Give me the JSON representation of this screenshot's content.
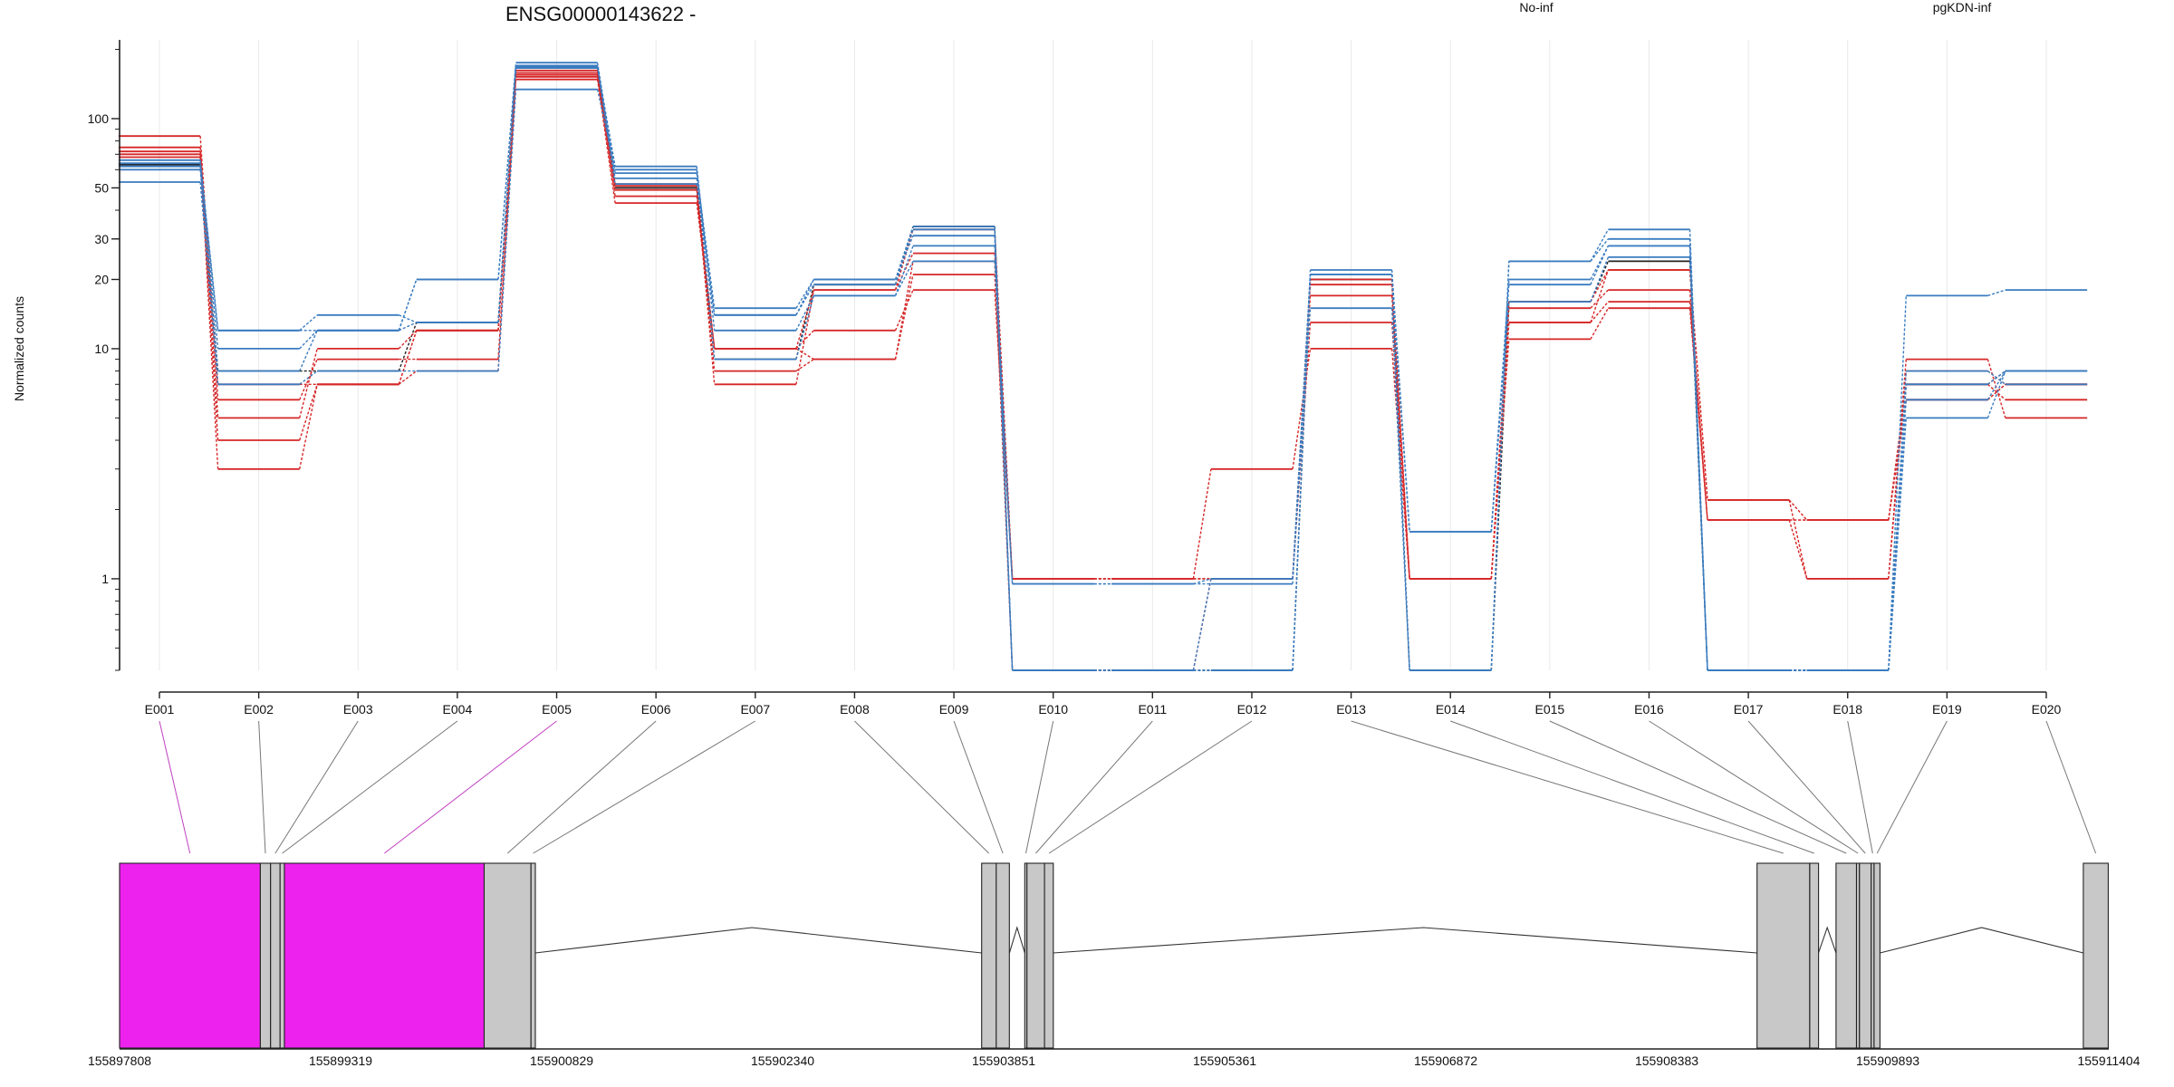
{
  "chart_data": {
    "type": "line",
    "title": "ENSG00000143622 -",
    "ylabel": "Normalized counts",
    "y_scale": "log",
    "ylim": [
      0.4,
      220
    ],
    "y_ticks": [
      1,
      10,
      20,
      30,
      50,
      100
    ],
    "legend": {
      "placement": "top",
      "entries": [
        "No-inf",
        "pgKDN-inf"
      ]
    },
    "groups": [
      {
        "label": "No-inf",
        "color": "#d62728"
      },
      {
        "label": "pgKDN-inf",
        "color": "#3a7cc0"
      }
    ],
    "colors": {
      "no_inf": "#d62728",
      "pgkdn_inf": "#3a7cc0",
      "dark": "#222222",
      "highlight_exon": "#ee22ee",
      "exon": "#c8c8c8"
    },
    "categories": [
      "E001",
      "E002",
      "E003",
      "E004",
      "E005",
      "E006",
      "E007",
      "E008",
      "E009",
      "E010",
      "E011",
      "E012",
      "E013",
      "E014",
      "E015",
      "E016",
      "E017",
      "E018",
      "E019",
      "E020"
    ],
    "series": [
      {
        "group": "No-inf",
        "values": [
          84,
          6,
          9,
          9,
          148,
          43,
          10,
          12,
          18,
          1,
          1,
          1,
          13,
          1,
          15,
          18,
          1.8,
          1,
          9,
          5
        ]
      },
      {
        "group": "No-inf",
        "values": [
          75,
          5,
          10,
          12,
          152,
          46,
          10,
          9,
          21,
          1,
          1,
          3,
          10,
          1,
          11,
          15,
          1.8,
          1.8,
          7,
          6
        ]
      },
      {
        "group": "No-inf",
        "values": [
          72,
          7,
          7,
          8,
          155,
          49,
          8,
          9,
          24,
          0.4,
          0.4,
          1,
          17,
          1,
          13,
          16,
          1.8,
          1.8,
          6,
          7
        ]
      },
      {
        "group": "No-inf",
        "values": [
          70,
          3,
          7,
          12,
          158,
          51,
          7,
          18,
          26,
          1,
          1,
          1,
          19,
          1,
          13,
          22,
          2.2,
          1.8,
          6,
          7
        ]
      },
      {
        "group": "No-inf",
        "values": [
          68,
          4,
          7,
          12,
          162,
          52,
          10,
          18,
          33,
          1,
          1,
          1,
          20,
          1,
          16,
          22,
          2.2,
          1,
          8,
          7
        ]
      },
      {
        "group": "pgKDN-inf",
        "values": [
          66,
          12,
          14,
          13,
          166,
          52,
          14,
          19,
          33,
          0.4,
          0.4,
          1,
          21,
          1.6,
          16,
          25,
          0.4,
          0.4,
          8,
          7
        ]
      },
      {
        "group": "pgKDN-inf",
        "values": [
          64,
          12,
          12,
          13,
          170,
          55,
          14,
          20,
          34,
          0.4,
          0.4,
          0.4,
          21,
          1.6,
          19,
          28,
          0.4,
          0.4,
          7,
          8
        ]
      },
      {
        "group": "pgKDN-inf",
        "values": [
          62,
          10,
          12,
          20,
          175,
          58,
          15,
          20,
          31,
          0.4,
          0.4,
          0.4,
          22,
          1.6,
          20,
          28,
          0.4,
          0.4,
          6,
          8
        ]
      },
      {
        "group": "pgKDN-inf",
        "values": [
          60,
          8,
          12,
          20,
          168,
          62,
          12,
          17,
          28,
          0.95,
          0.95,
          1,
          15,
          0.4,
          24,
          30,
          0.4,
          0.4,
          5,
          8
        ]
      },
      {
        "group": "pgKDN-inf",
        "values": [
          53,
          7,
          8,
          8,
          134,
          60,
          9,
          17,
          24,
          0.95,
          0.95,
          0.95,
          21,
          0.4,
          24,
          33,
          0.4,
          0.4,
          17,
          18
        ]
      }
    ],
    "dark_series": {
      "values": [
        63,
        8,
        8,
        13,
        168,
        50,
        9,
        19,
        34,
        0.4,
        0.4,
        0.4,
        20,
        0.4,
        16,
        24,
        0.4,
        0.4,
        7,
        8
      ]
    },
    "coordinate_axis": {
      "ticks": [
        "155897808",
        "155899319",
        "155900829",
        "155902340",
        "155903851",
        "155905361",
        "155906872",
        "155908383",
        "155909893",
        "155911404"
      ],
      "start": 155897808,
      "end": 155911404
    },
    "exons": [
      {
        "id": "E001",
        "start": 155897808,
        "end": 155898770,
        "highlight": true
      },
      {
        "id": "E002",
        "start": 155898770,
        "end": 155898840,
        "highlight": false
      },
      {
        "id": "E003",
        "start": 155898840,
        "end": 155898905,
        "highlight": false
      },
      {
        "id": "E004",
        "start": 155898905,
        "end": 155898935,
        "highlight": false
      },
      {
        "id": "E005",
        "start": 155898935,
        "end": 155900300,
        "highlight": true
      },
      {
        "id": "E006",
        "start": 155900300,
        "end": 155900620,
        "highlight": false
      },
      {
        "id": "E007",
        "start": 155900620,
        "end": 155900650,
        "highlight": false
      },
      {
        "id": "E008",
        "start": 155903700,
        "end": 155903800,
        "highlight": false
      },
      {
        "id": "E009",
        "start": 155903800,
        "end": 155903890,
        "highlight": false
      },
      {
        "id": "E010",
        "start": 155903995,
        "end": 155904010,
        "highlight": false
      },
      {
        "id": "E011",
        "start": 155904010,
        "end": 155904130,
        "highlight": false
      },
      {
        "id": "E012",
        "start": 155904130,
        "end": 155904190,
        "highlight": false
      },
      {
        "id": "E013",
        "start": 155909000,
        "end": 155909360,
        "highlight": false
      },
      {
        "id": "E014",
        "start": 155909360,
        "end": 155909420,
        "highlight": false
      },
      {
        "id": "E015",
        "start": 155909540,
        "end": 155909680,
        "highlight": false
      },
      {
        "id": "E016",
        "start": 155909680,
        "end": 155909700,
        "highlight": false
      },
      {
        "id": "E017",
        "start": 155909700,
        "end": 155909780,
        "highlight": false
      },
      {
        "id": "E018",
        "start": 155909780,
        "end": 155909800,
        "highlight": false
      },
      {
        "id": "E019",
        "start": 155909800,
        "end": 155909840,
        "highlight": false
      },
      {
        "id": "E020",
        "start": 155911230,
        "end": 155911400,
        "highlight": false
      }
    ],
    "introns": [
      {
        "from": 155900650,
        "to": 155903700,
        "apex": 155902130
      },
      {
        "from": 155903890,
        "to": 155903995,
        "apex": 155903942
      },
      {
        "from": 155904190,
        "to": 155909000,
        "apex": 155906720
      },
      {
        "from": 155909420,
        "to": 155909540,
        "apex": 155909480
      },
      {
        "from": 155909840,
        "to": 155911230,
        "apex": 155910535
      }
    ]
  }
}
